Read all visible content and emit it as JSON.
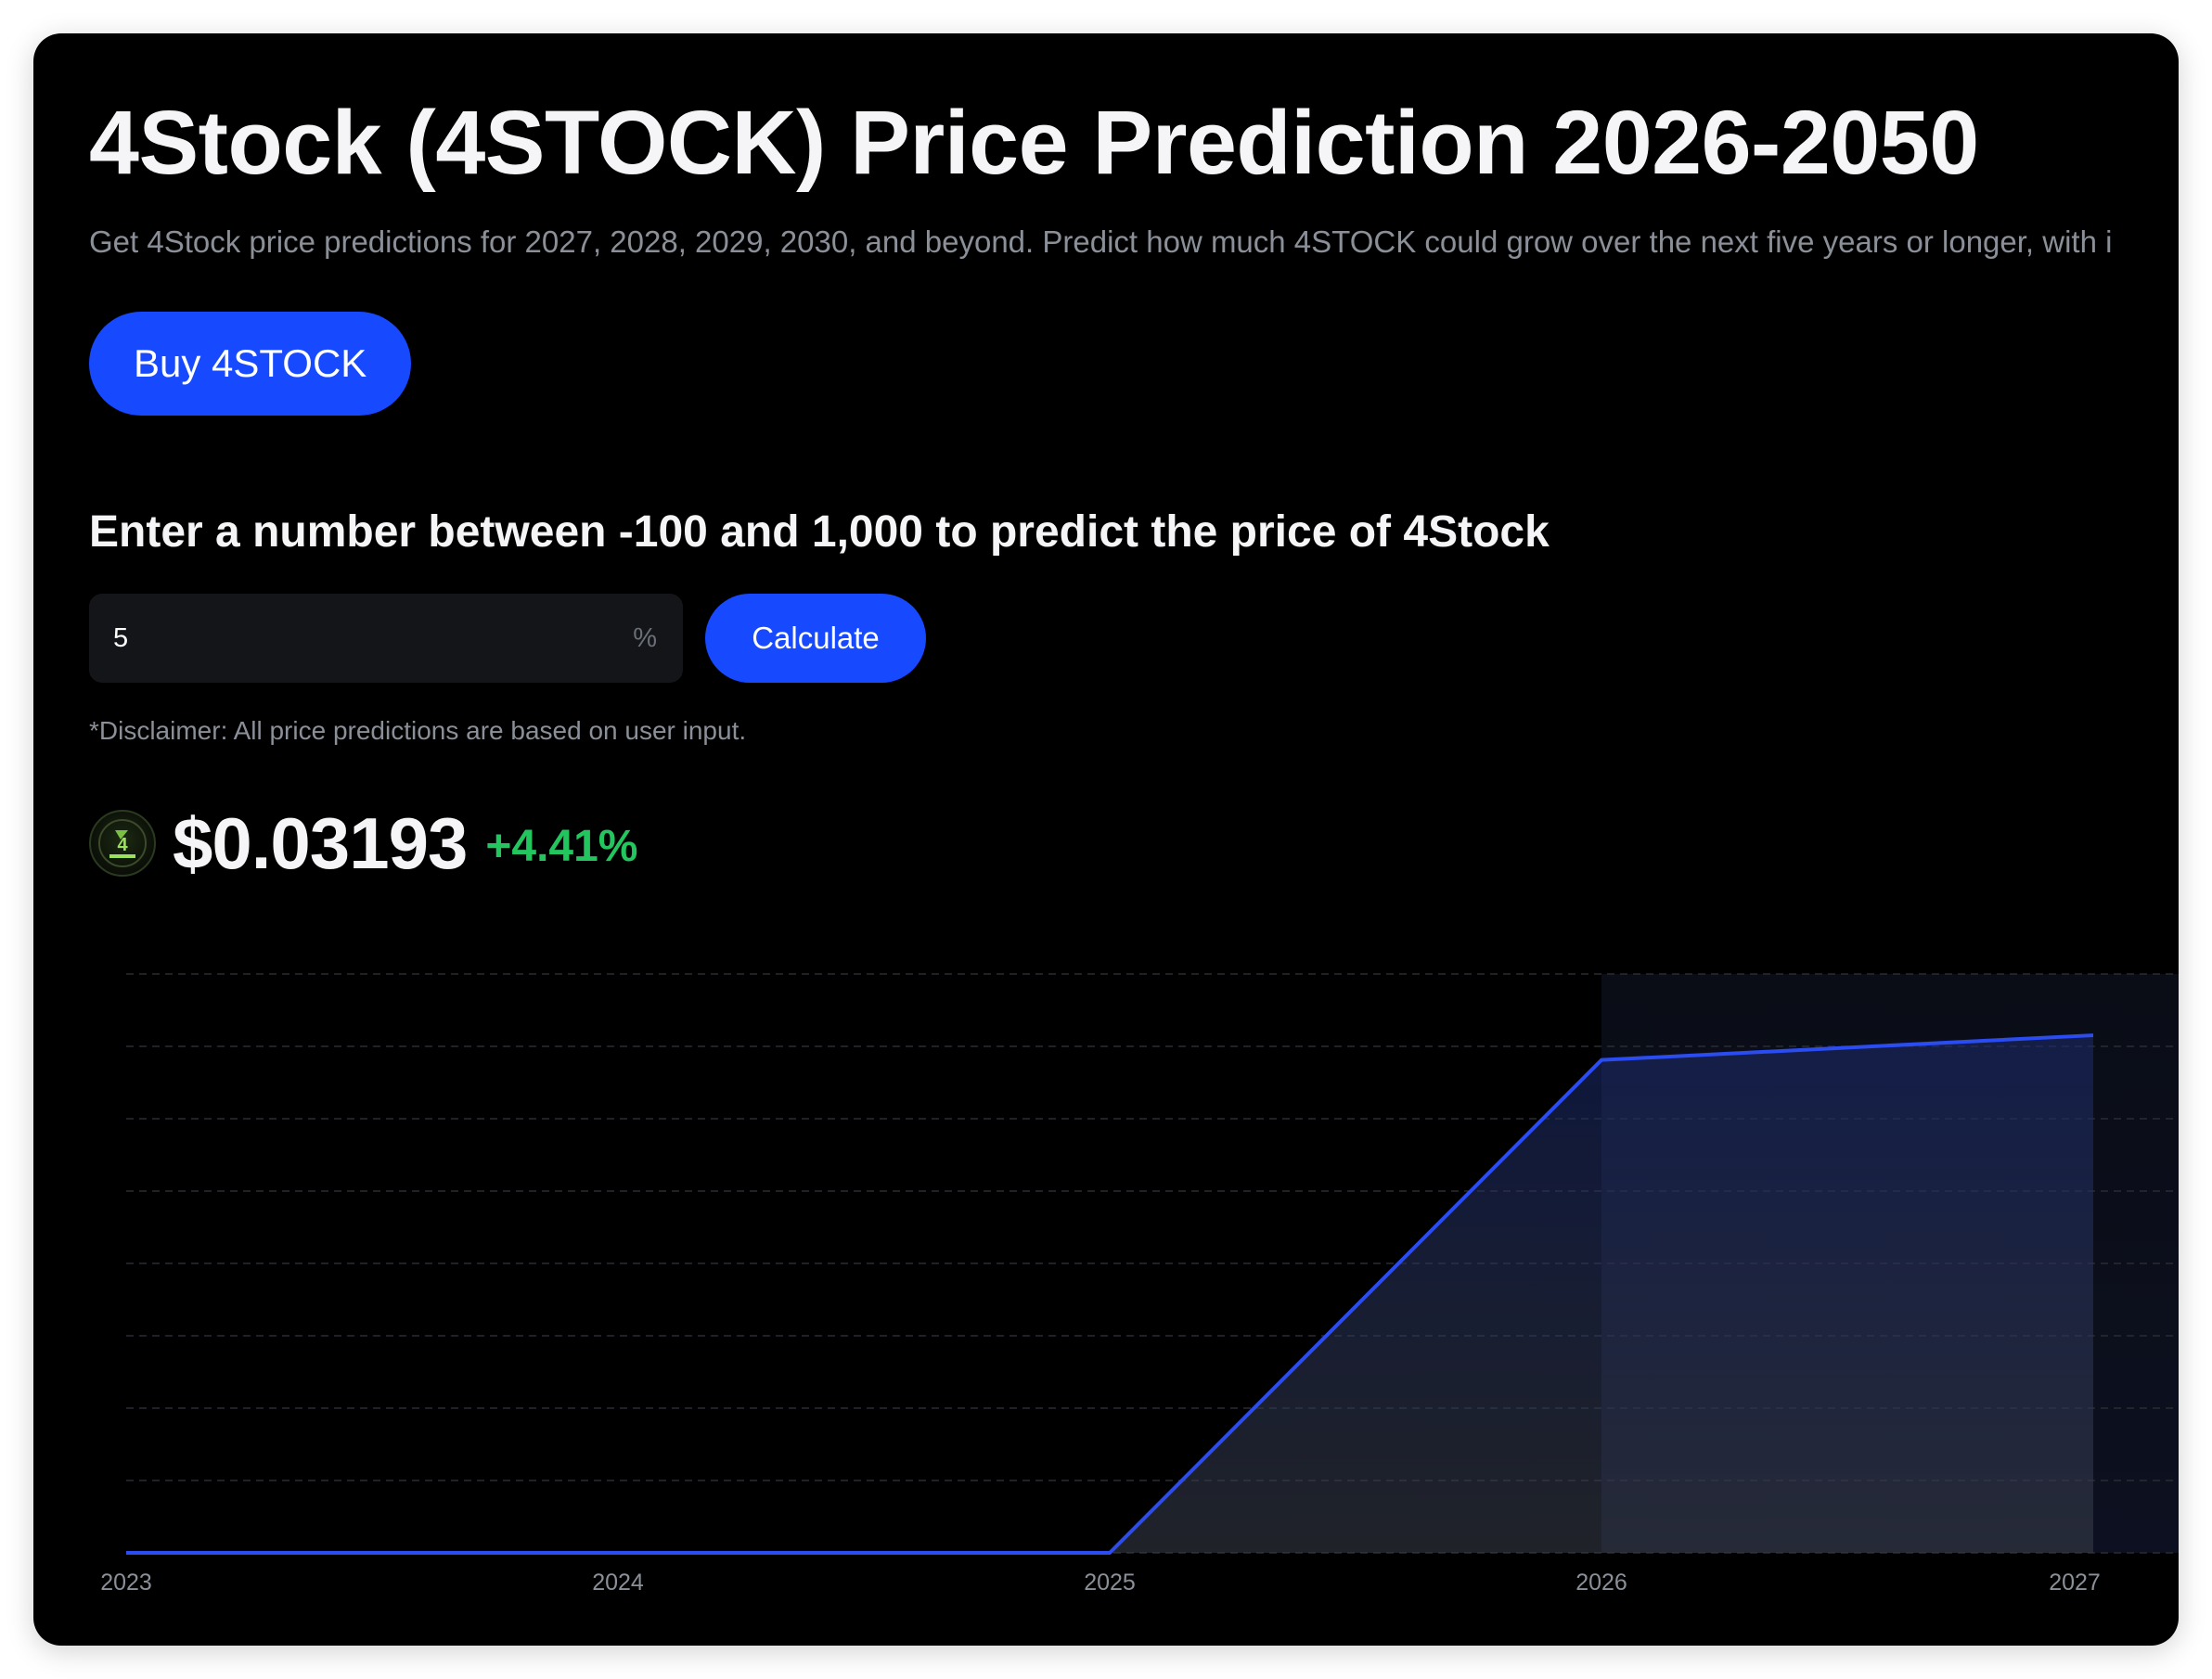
{
  "header": {
    "title": "4Stock (4STOCK) Price Prediction 2026-2050",
    "subtitle": "Get 4Stock price predictions for 2027, 2028, 2029, 2030, and beyond. Predict how much 4STOCK could grow over the next five years or longer, with i"
  },
  "buy_button": {
    "label": "Buy 4STOCK"
  },
  "calculator": {
    "prompt": "Enter a number between -100 and 1,000 to predict the price of 4Stock",
    "input_value": "5",
    "input_suffix": "%",
    "calculate_label": "Calculate",
    "disclaimer": "*Disclaimer: All price predictions are based on user input."
  },
  "price_display": {
    "logo_icon": "4stocks-logo-icon",
    "price": "$0.03193",
    "change": "+4.41%",
    "change_color": "#22c55e"
  },
  "colors": {
    "accent": "#1749ff",
    "line": "#2a4cf0",
    "background": "#000000"
  },
  "chart_data": {
    "type": "area",
    "x": [
      2023,
      2024,
      2025,
      2026,
      2027
    ],
    "tick_labels": [
      "2023",
      "2024",
      "2025",
      "2026",
      "2027"
    ],
    "y": [
      0,
      0,
      0,
      0.03193,
      0.03353
    ],
    "projection_starts_at": 2026,
    "grid": true,
    "y_axis_labels_shown": false,
    "line_color": "#2a4cf0"
  }
}
